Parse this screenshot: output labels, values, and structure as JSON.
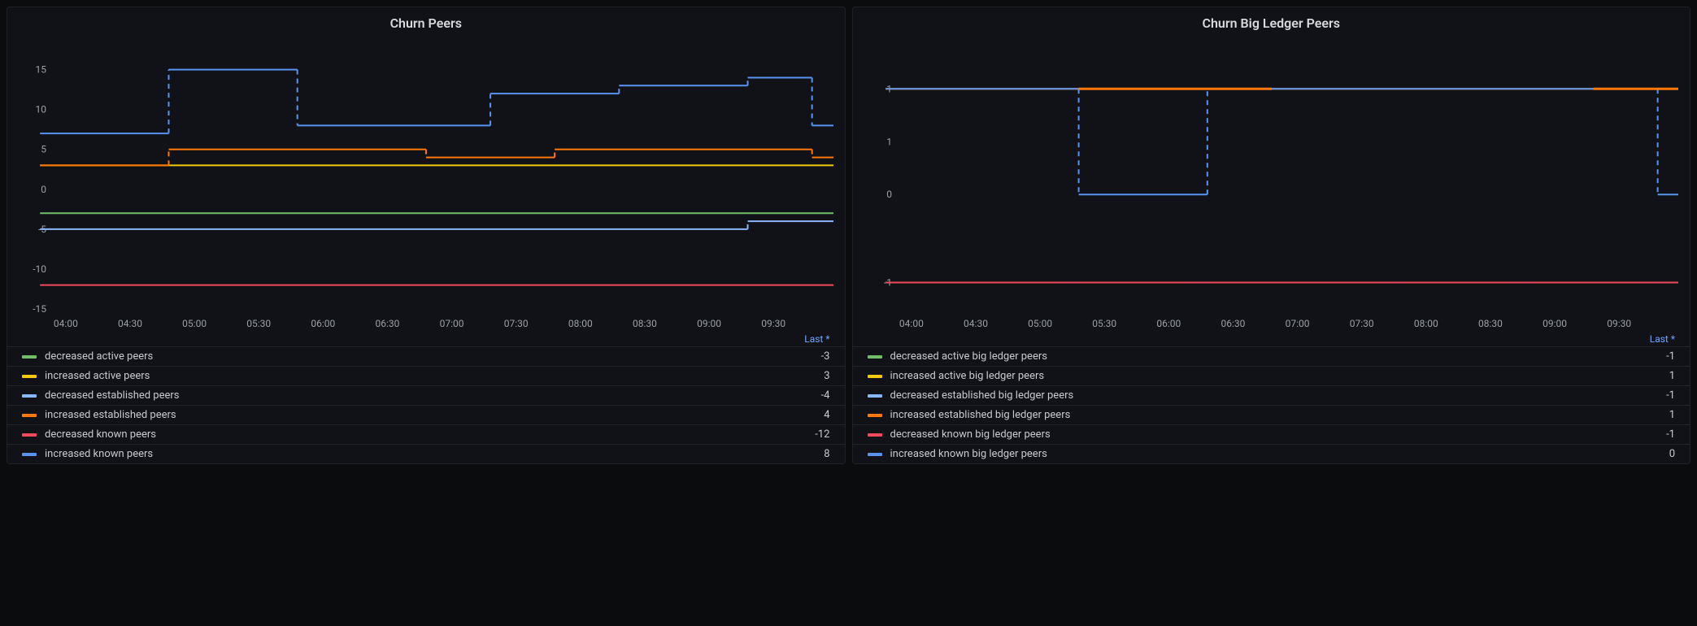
{
  "palette": {
    "bg_page": "#0b0c0e",
    "bg_panel": "#111217",
    "border_panel": "#1f2126",
    "text": "#ccccdc",
    "axis_text": "#9aa0a6",
    "legend_border": "#22252b",
    "header_link": "#6fa8ff"
  },
  "legend_header_label": "Last *",
  "x_axis": {
    "ticks": [
      "04:00",
      "04:30",
      "05:00",
      "05:30",
      "06:00",
      "06:30",
      "07:00",
      "07:30",
      "08:00",
      "08:30",
      "09:00",
      "09:30"
    ],
    "min": 0,
    "max": 12
  },
  "panels": [
    {
      "title": "Churn Peers",
      "y_axis": {
        "min": -15,
        "max": 17,
        "ticks": [
          -15,
          -10,
          -5,
          0,
          5,
          10,
          15
        ]
      },
      "line_width": 2,
      "dash_pattern": "6,5",
      "series": [
        {
          "name": "decreased active peers",
          "color": "#73bf69",
          "last": "-3",
          "step_values": [
            -3,
            -3,
            -3,
            -3,
            -3,
            -3,
            -3,
            -3,
            -3,
            -3,
            -3,
            -3,
            -3
          ]
        },
        {
          "name": "increased active peers",
          "color": "#f2cc0c",
          "last": "3",
          "step_values": [
            3,
            3,
            3,
            3,
            3,
            3,
            3,
            3,
            3,
            3,
            3,
            3,
            3
          ]
        },
        {
          "name": "decreased established peers",
          "color": "#8ab8ff",
          "last": "-4",
          "step_values": [
            -5,
            -5,
            -5,
            -5,
            -5,
            -5,
            -5,
            -5,
            -5,
            -5,
            -5,
            -4,
            -4
          ]
        },
        {
          "name": "increased established peers",
          "color": "#ff780a",
          "last": "4",
          "step_values": [
            3,
            3,
            5,
            5,
            5,
            5,
            4,
            4,
            5,
            5,
            5,
            5,
            4
          ]
        },
        {
          "name": "decreased known peers",
          "color": "#f2495c",
          "last": "-12",
          "step_values": [
            -12,
            -12,
            -12,
            -12,
            -12,
            -12,
            -12,
            -12,
            -12,
            -12,
            -12,
            -12,
            -12
          ]
        },
        {
          "name": "increased known peers",
          "color": "#5794f2",
          "last": "8",
          "step_values": [
            7,
            7,
            15,
            15,
            8,
            8,
            8,
            12,
            12,
            13,
            13,
            14,
            8
          ]
        }
      ]
    },
    {
      "title": "Churn Big Ledger Peers",
      "y_axis": {
        "min": -1.3,
        "max": 1.6,
        "ticks": [
          -1,
          0,
          1,
          1
        ],
        "tick_labels": [
          "-1",
          "0",
          "1",
          "1"
        ],
        "tick_positions": [
          -1,
          0,
          0.6,
          1.2
        ]
      },
      "line_width": 2,
      "dash_pattern": "6,5",
      "series": [
        {
          "name": "decreased active big ledger peers",
          "color": "#73bf69",
          "last": "-1",
          "step_values": [
            -1,
            -1,
            -1,
            -1,
            -1,
            -1,
            -1,
            -1,
            -1,
            -1,
            -1,
            -1,
            -1
          ]
        },
        {
          "name": "increased active big ledger peers",
          "color": "#f2cc0c",
          "last": "1",
          "step_values": [
            1.2,
            1.2,
            1.2,
            1.2,
            1.2,
            1.2,
            1.2,
            1.2,
            1.2,
            1.2,
            1.2,
            1.2,
            1.2
          ]
        },
        {
          "name": "decreased established big ledger peers",
          "color": "#8ab8ff",
          "last": "-1",
          "step_values": [
            -1,
            -1,
            -1,
            -1,
            -1,
            -1,
            -1,
            -1,
            -1,
            -1,
            -1,
            -1,
            -1
          ]
        },
        {
          "name": "increased established big ledger peers",
          "color": "#ff780a",
          "last": "1",
          "step_values": [
            1.2,
            1.2,
            1.2,
            1.2,
            1.2,
            1.2,
            1.2,
            1.2,
            1.2,
            1.2,
            1.2,
            1.2,
            1.2
          ]
        },
        {
          "name": "decreased known big ledger peers",
          "color": "#f2495c",
          "last": "-1",
          "step_values": [
            -1,
            -1,
            -1,
            -1,
            -1,
            -1,
            -1,
            -1,
            -1,
            -1,
            -1,
            -1,
            -1
          ]
        },
        {
          "name": "increased known big ledger peers",
          "color": "#5794f2",
          "last": "0",
          "step_values": [
            1.2,
            1.2,
            1.2,
            0,
            0,
            1.2,
            1.2,
            1.2,
            1.2,
            1.2,
            1.2,
            1.2,
            0
          ]
        }
      ],
      "orange_top_segments": [
        [
          3,
          5
        ],
        [
          11,
          12
        ]
      ]
    }
  ]
}
